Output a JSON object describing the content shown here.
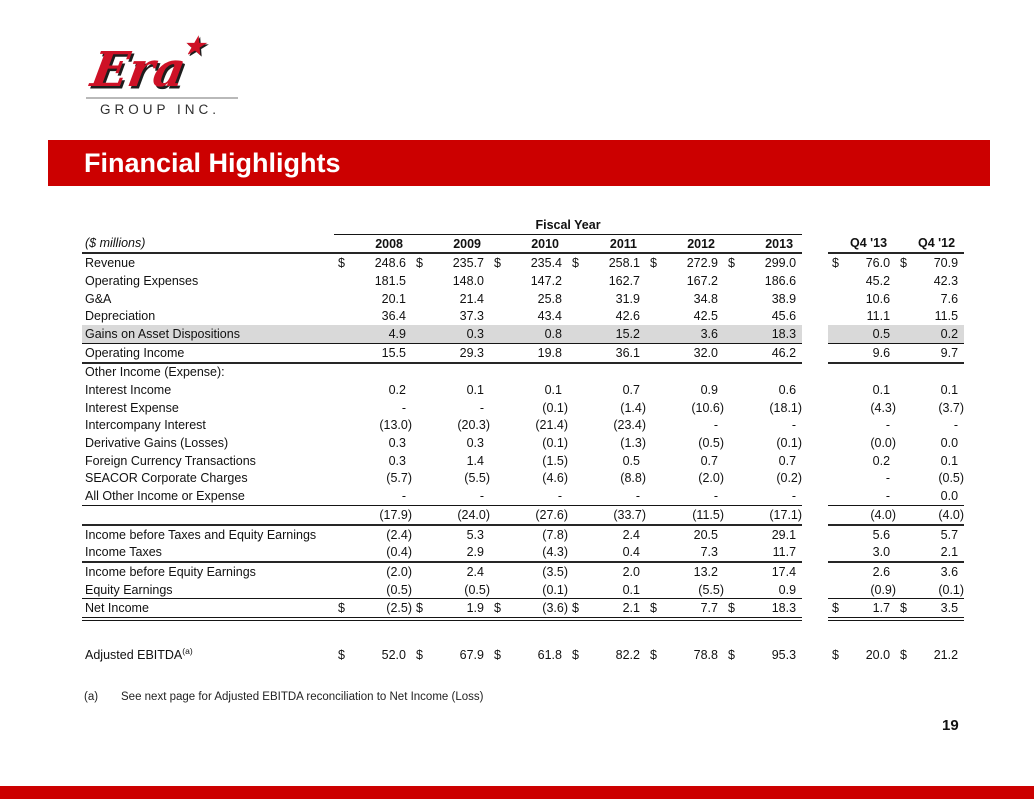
{
  "logo": {
    "brand": "Era",
    "star": "★",
    "subtitle": "GROUP INC."
  },
  "title": "Financial Highlights",
  "colors": {
    "accent_red": "#cc0000",
    "logo_red": "#ce1126",
    "row_highlight": "#d9d9d9"
  },
  "table": {
    "units_label": "($ millions)",
    "group_header": "Fiscal Year",
    "year_columns": [
      "2008",
      "2009",
      "2010",
      "2011",
      "2012",
      "2013"
    ],
    "quarter_columns": [
      "Q4 '13",
      "Q4 '12"
    ],
    "rows": [
      {
        "label": "Revenue",
        "dollar": true,
        "values": [
          "248.6",
          "235.7",
          "235.4",
          "258.1",
          "272.9",
          "299.0"
        ],
        "q": [
          "76.0",
          "70.9"
        ]
      },
      {
        "label": "Operating Expenses",
        "values": [
          "181.5",
          "148.0",
          "147.2",
          "162.7",
          "167.2",
          "186.6"
        ],
        "q": [
          "45.2",
          "42.3"
        ]
      },
      {
        "label": "G&A",
        "values": [
          "20.1",
          "21.4",
          "25.8",
          "31.9",
          "34.8",
          "38.9"
        ],
        "q": [
          "10.6",
          "7.6"
        ]
      },
      {
        "label": "Depreciation",
        "values": [
          "36.4",
          "37.3",
          "43.4",
          "42.6",
          "42.5",
          "45.6"
        ],
        "q": [
          "11.1",
          "11.5"
        ]
      },
      {
        "label": "Gains on Asset Dispositions",
        "highlight": true,
        "border": "thin",
        "values": [
          "4.9",
          "0.3",
          "0.8",
          "15.2",
          "3.6",
          "18.3"
        ],
        "q": [
          "0.5",
          "0.2"
        ]
      },
      {
        "label": "Operating Income",
        "border": "thick",
        "values": [
          "15.5",
          "29.3",
          "19.8",
          "36.1",
          "32.0",
          "46.2"
        ],
        "q": [
          "9.6",
          "9.7"
        ]
      },
      {
        "label": "Other Income (Expense):",
        "section": true
      },
      {
        "label": "Interest Income",
        "values": [
          "0.2",
          "0.1",
          "0.1",
          "0.7",
          "0.9",
          "0.6"
        ],
        "q": [
          "0.1",
          "0.1"
        ]
      },
      {
        "label": "Interest Expense",
        "values": [
          "-",
          "-",
          "(0.1)",
          "(1.4)",
          "(10.6)",
          "(18.1)"
        ],
        "q": [
          "(4.3)",
          "(3.7)"
        ]
      },
      {
        "label": "Intercompany Interest",
        "values": [
          "(13.0)",
          "(20.3)",
          "(21.4)",
          "(23.4)",
          "-",
          "-"
        ],
        "q": [
          "-",
          "-"
        ]
      },
      {
        "label": "Derivative Gains (Losses)",
        "values": [
          "0.3",
          "0.3",
          "(0.1)",
          "(1.3)",
          "(0.5)",
          "(0.1)"
        ],
        "q": [
          "(0.0)",
          "0.0"
        ]
      },
      {
        "label": "Foreign Currency Transactions",
        "values": [
          "0.3",
          "1.4",
          "(1.5)",
          "0.5",
          "0.7",
          "0.7"
        ],
        "q": [
          "0.2",
          "0.1"
        ]
      },
      {
        "label": "SEACOR Corporate Charges",
        "values": [
          "(5.7)",
          "(5.5)",
          "(4.6)",
          "(8.8)",
          "(2.0)",
          "(0.2)"
        ],
        "q": [
          "-",
          "(0.5)"
        ]
      },
      {
        "label": "All Other Income or Expense",
        "border": "thin",
        "values": [
          "-",
          "-",
          "-",
          "-",
          "-",
          "-"
        ],
        "q": [
          "-",
          "0.0"
        ]
      },
      {
        "label": "",
        "border": "thick",
        "values": [
          "(17.9)",
          "(24.0)",
          "(27.6)",
          "(33.7)",
          "(11.5)",
          "(17.1)"
        ],
        "q": [
          "(4.0)",
          "(4.0)"
        ]
      },
      {
        "label": "Income before Taxes and Equity Earnings",
        "values": [
          "(2.4)",
          "5.3",
          "(7.8)",
          "2.4",
          "20.5",
          "29.1"
        ],
        "q": [
          "5.6",
          "5.7"
        ]
      },
      {
        "label": "Income Taxes",
        "border": "thick",
        "values": [
          "(0.4)",
          "2.9",
          "(4.3)",
          "0.4",
          "7.3",
          "11.7"
        ],
        "q": [
          "3.0",
          "2.1"
        ]
      },
      {
        "label": "Income before Equity Earnings",
        "values": [
          "(2.0)",
          "2.4",
          "(3.5)",
          "2.0",
          "13.2",
          "17.4"
        ],
        "q": [
          "2.6",
          "3.6"
        ]
      },
      {
        "label": "Equity Earnings",
        "border": "thin",
        "values": [
          "(0.5)",
          "(0.5)",
          "(0.1)",
          "0.1",
          "(5.5)",
          "0.9"
        ],
        "q": [
          "(0.9)",
          "(0.1)"
        ]
      },
      {
        "label": "Net Income",
        "dollar": true,
        "border": "double",
        "values": [
          "(2.5)",
          "1.9",
          "(3.6)",
          "2.1",
          "7.7",
          "18.3"
        ],
        "q": [
          "1.7",
          "3.5"
        ]
      },
      {
        "spacer": true
      },
      {
        "label": "Adjusted EBITDA",
        "sup": "(a)",
        "dollar": true,
        "values": [
          "52.0",
          "67.9",
          "61.8",
          "82.2",
          "78.8",
          "95.3"
        ],
        "q": [
          "20.0",
          "21.2"
        ]
      }
    ]
  },
  "footnote": {
    "marker": "(a)",
    "text": "See next page for Adjusted EBITDA reconciliation to Net Income (Loss)"
  },
  "page_number": "19"
}
